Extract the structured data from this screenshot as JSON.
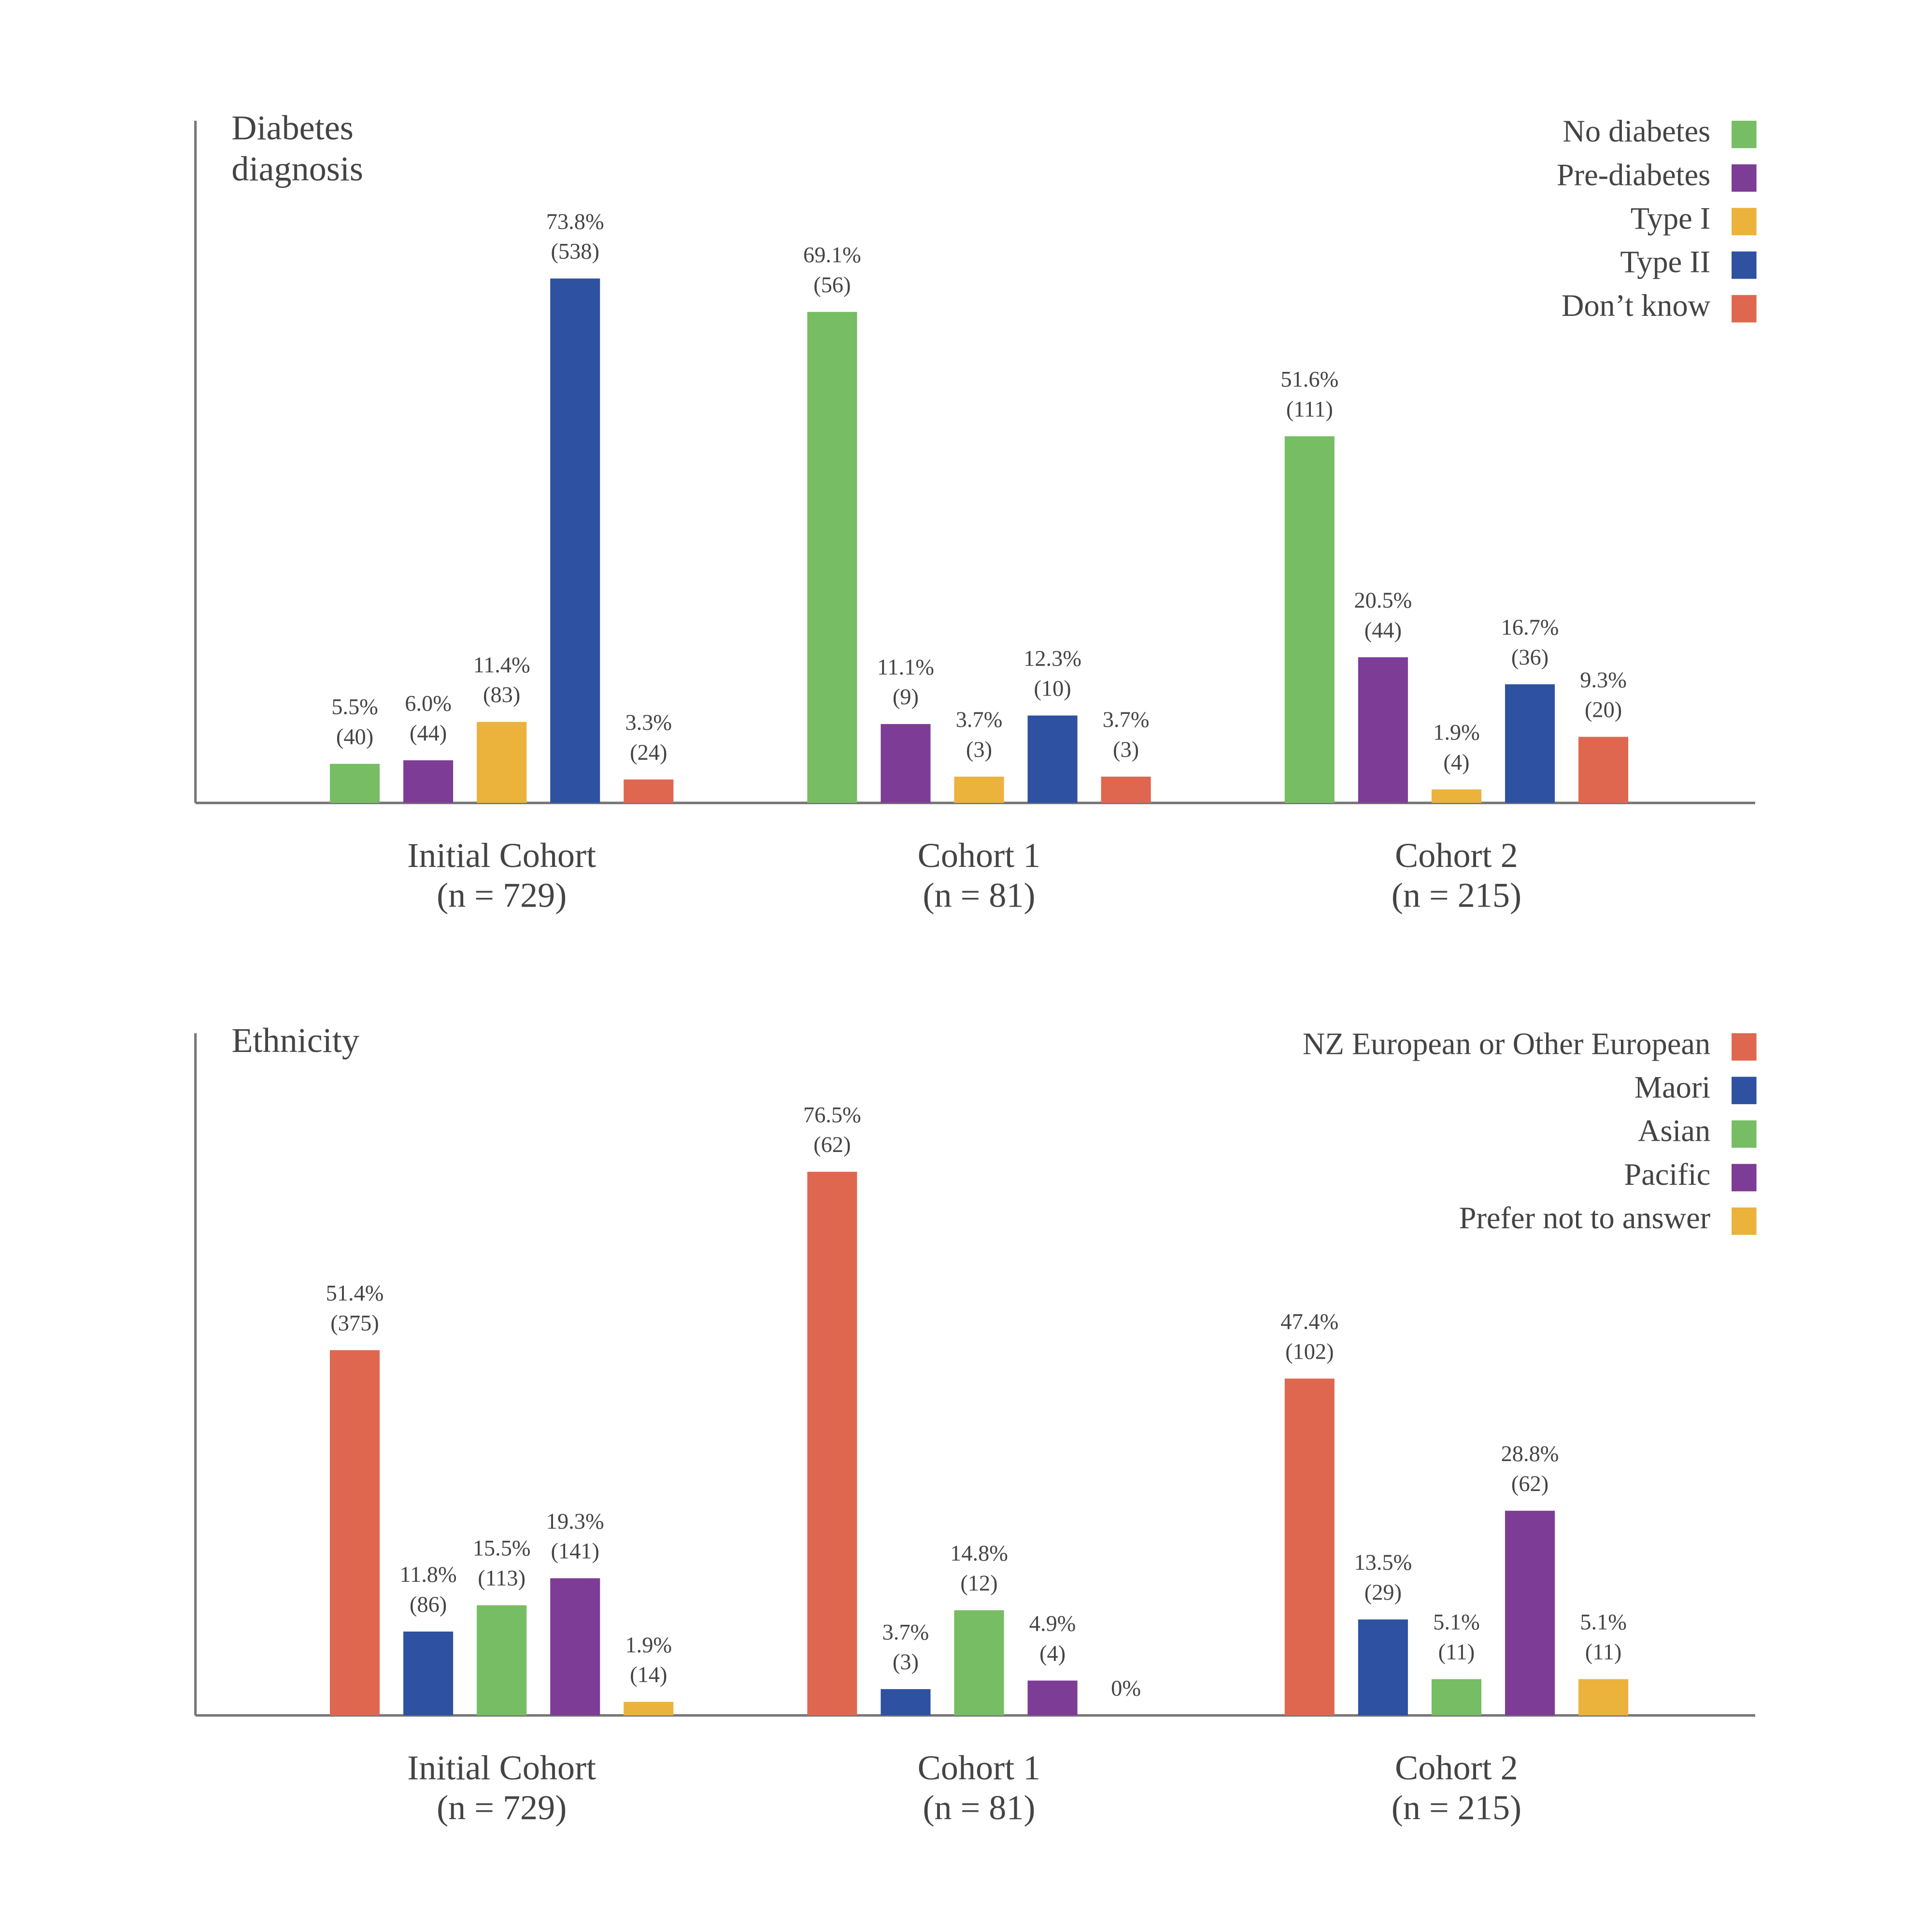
{
  "chart_data": [
    {
      "type": "bar",
      "title": "Diabetes diagnosis",
      "categories": [
        "Initial Cohort",
        "Cohort 1",
        "Cohort 2"
      ],
      "category_notes": [
        "(n = 729)",
        "(n = 81)",
        "(n = 215)"
      ],
      "ylim": [
        0,
        96
      ],
      "legend": "upper right",
      "series": [
        {
          "name": "No diabetes",
          "color": "#77bd63",
          "values": [
            5.5,
            69.1,
            51.6
          ],
          "value_labels": [
            "5.5%",
            "69.1%",
            "51.6%"
          ],
          "count_labels": [
            "(40)",
            "(56)",
            "(111)"
          ]
        },
        {
          "name": "Pre-diabetes",
          "color": "#7d3c96",
          "values": [
            6.0,
            11.1,
            20.5
          ],
          "value_labels": [
            "6.0%",
            "11.1%",
            "20.5%"
          ],
          "count_labels": [
            "(44)",
            "(9)",
            "(44)"
          ]
        },
        {
          "name": "Type I",
          "color": "#ebb23c",
          "values": [
            11.4,
            3.7,
            1.9
          ],
          "value_labels": [
            "11.4%",
            "3.7%",
            "1.9%"
          ],
          "count_labels": [
            "(83)",
            "(3)",
            "(4)"
          ]
        },
        {
          "name": "Type II",
          "color": "#2e51a2",
          "values": [
            73.8,
            12.3,
            16.7
          ],
          "value_labels": [
            "73.8%",
            "12.3%",
            "16.7%"
          ],
          "count_labels": [
            "(538)",
            "(10)",
            "(36)"
          ]
        },
        {
          "name": "Don’t know",
          "color": "#df6750",
          "values": [
            3.3,
            3.7,
            9.3
          ],
          "value_labels": [
            "3.3%",
            "3.7%",
            "9.3%"
          ],
          "count_labels": [
            "(24)",
            "(3)",
            "(20)"
          ]
        }
      ]
    },
    {
      "type": "bar",
      "title": "Ethnicity",
      "categories": [
        "Initial Cohort",
        "Cohort 1",
        "Cohort 2"
      ],
      "category_notes": [
        "(n = 729)",
        "(n = 81)",
        "(n = 215)"
      ],
      "ylim": [
        0,
        96
      ],
      "legend": "upper right",
      "series": [
        {
          "name": "NZ European or Other European",
          "color": "#df6750",
          "values": [
            51.4,
            76.5,
            47.4
          ],
          "value_labels": [
            "51.4%",
            "76.5%",
            "47.4%"
          ],
          "count_labels": [
            "(375)",
            "(62)",
            "(102)"
          ]
        },
        {
          "name": "Maori",
          "color": "#2e51a2",
          "values": [
            11.8,
            3.7,
            13.5
          ],
          "value_labels": [
            "11.8%",
            "3.7%",
            "13.5%"
          ],
          "count_labels": [
            "(86)",
            "(3)",
            "(29)"
          ]
        },
        {
          "name": "Asian",
          "color": "#77bd63",
          "values": [
            15.5,
            14.8,
            5.1
          ],
          "value_labels": [
            "15.5%",
            "14.8%",
            "5.1%"
          ],
          "count_labels": [
            "(113)",
            "(12)",
            "(11)"
          ]
        },
        {
          "name": "Pacific",
          "color": "#7d3c96",
          "values": [
            19.3,
            4.9,
            28.8
          ],
          "value_labels": [
            "19.3%",
            "4.9%",
            "28.8%"
          ],
          "count_labels": [
            "(141)",
            "(4)",
            "(62)"
          ]
        },
        {
          "name": "Prefer not to answer",
          "color": "#ebb23c",
          "values": [
            1.9,
            0,
            5.1
          ],
          "value_labels": [
            "1.9%",
            "0%",
            "5.1%"
          ],
          "count_labels": [
            "(14)",
            null,
            "(11)"
          ]
        }
      ]
    }
  ]
}
